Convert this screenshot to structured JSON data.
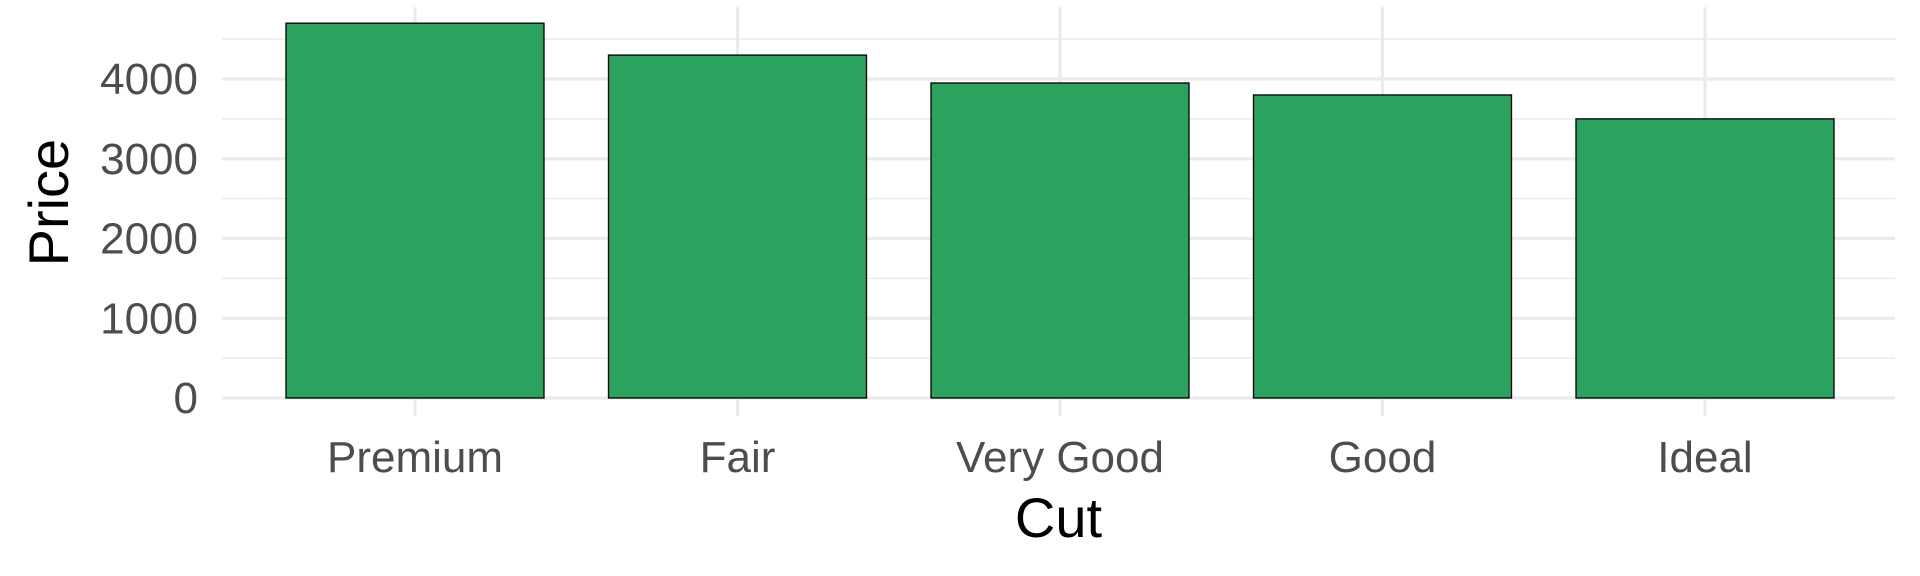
{
  "chart_data": {
    "type": "bar",
    "title": "",
    "xlabel": "Cut",
    "ylabel": "Price",
    "categories": [
      "Premium",
      "Fair",
      "Very Good",
      "Good",
      "Ideal"
    ],
    "values": [
      4700,
      4300,
      3950,
      3800,
      3500
    ],
    "ylim": [
      0,
      4900
    ],
    "yticks": [
      0,
      1000,
      2000,
      3000,
      4000
    ],
    "ytick_labels": [
      "0",
      "1000",
      "2000",
      "3000",
      "4000"
    ],
    "bar_color": "#2ca25f",
    "bar_edge_color": "#000000",
    "grid": true,
    "legend": "none"
  }
}
